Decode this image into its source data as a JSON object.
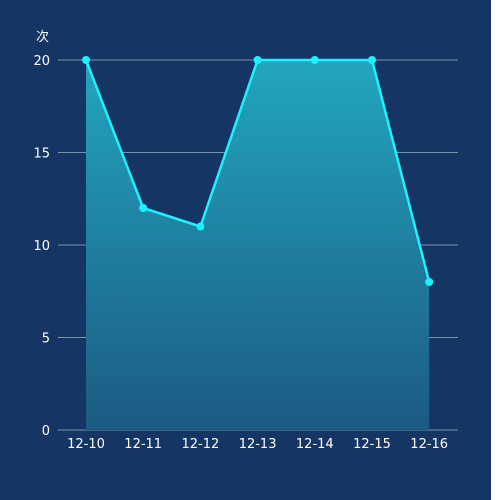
{
  "chart_data": {
    "type": "area",
    "unit": "次",
    "categories": [
      "12-10",
      "12-11",
      "12-12",
      "12-13",
      "12-14",
      "12-15",
      "12-16"
    ],
    "series": [
      {
        "values": [
          20,
          12,
          11,
          20,
          20,
          20,
          8
        ]
      }
    ],
    "ylim": [
      0,
      20
    ],
    "yticks": [
      0,
      5,
      10,
      15,
      20
    ],
    "grid": true,
    "colors": {
      "background": "#153564",
      "line": "#1ef0ff",
      "area_top": "#22a6be",
      "area_bottom": "#1c5a82",
      "grid": "#8aa3b8",
      "text": "#ffffff"
    }
  }
}
